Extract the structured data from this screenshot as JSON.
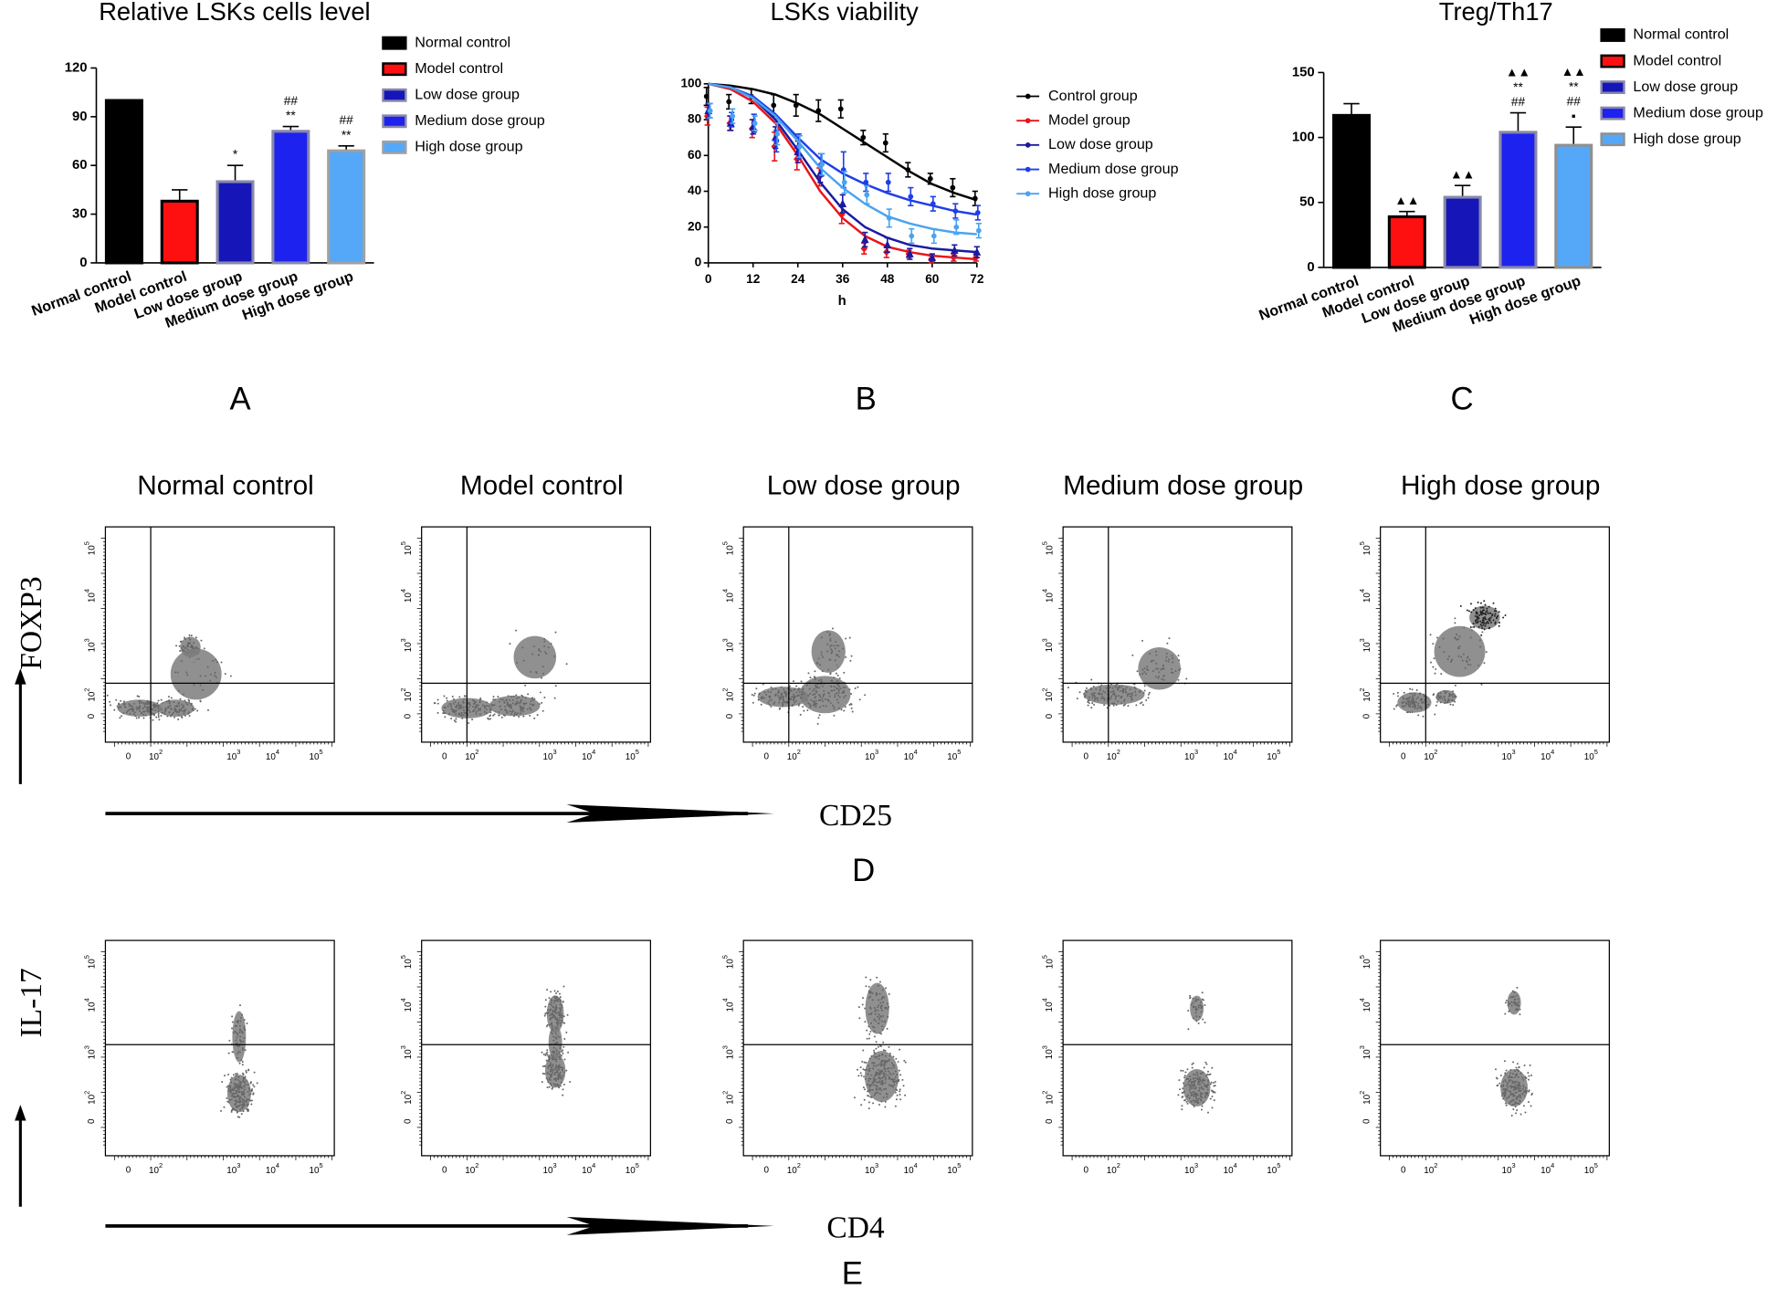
{
  "chart_data": [
    {
      "type": "bar",
      "panel_label": "A",
      "title": "Relative LSKs cells level",
      "categories": [
        "Normal control",
        "Model control",
        "Low dose group",
        "Medium dose group",
        "High dose group"
      ],
      "values": [
        100,
        38,
        50,
        81,
        69
      ],
      "errors": [
        0,
        7,
        10,
        3,
        3
      ],
      "colors": [
        "#000000",
        "#ff1010",
        "#1616b8",
        "#1e22ee",
        "#55a8f8"
      ],
      "edge_colors": [
        "#000000",
        "#000000",
        "#8888aa",
        "#8888aa",
        "#a0a0a0"
      ],
      "annotations": [
        null,
        null,
        [
          "*"
        ],
        [
          "**",
          "##"
        ],
        [
          "**",
          "##"
        ]
      ],
      "ylim": [
        0,
        120
      ],
      "yticks": [
        0,
        30,
        60,
        90,
        120
      ],
      "legend": "right"
    },
    {
      "type": "line",
      "panel_label": "B",
      "title": "LSKs viability",
      "x_label": "h",
      "x": [
        0,
        6,
        12,
        18,
        24,
        30,
        36,
        42,
        48,
        54,
        60,
        66,
        72
      ],
      "xlim": [
        0,
        72
      ],
      "xticks": [
        0,
        12,
        24,
        36,
        48,
        60,
        72
      ],
      "ylim": [
        0,
        100
      ],
      "yticks": [
        0,
        20,
        40,
        60,
        80,
        100
      ],
      "legend": "right",
      "series": [
        {
          "name": "Control group",
          "color": "#000000",
          "marker": "circle",
          "values": [
            93,
            90,
            93,
            88,
            88,
            85,
            86,
            70,
            67,
            52,
            47,
            42,
            36
          ],
          "errors": [
            5,
            4,
            4,
            6,
            6,
            6,
            5,
            4,
            5,
            4,
            3,
            5,
            4
          ],
          "fit": [
            100,
            99,
            97,
            94,
            89,
            83,
            75,
            67,
            59,
            51,
            44,
            39,
            35
          ]
        },
        {
          "name": "Model group",
          "color": "#e8141c",
          "marker": "diamond",
          "values": [
            82,
            78,
            75,
            65,
            58,
            48,
            27,
            8,
            6,
            5,
            2,
            3,
            3
          ],
          "errors": [
            5,
            4,
            5,
            8,
            6,
            5,
            5,
            3,
            3,
            2,
            2,
            2,
            2
          ],
          "fit": [
            100,
            97,
            90,
            78,
            60,
            40,
            25,
            15,
            9,
            6,
            4,
            3,
            2
          ]
        },
        {
          "name": "Low dose group",
          "color": "#1a1aa0",
          "marker": "triangle",
          "values": [
            85,
            78,
            76,
            70,
            62,
            50,
            33,
            13,
            10,
            5,
            3,
            7,
            6
          ],
          "errors": [
            4,
            4,
            4,
            6,
            6,
            5,
            5,
            4,
            4,
            3,
            2,
            3,
            3
          ],
          "fit": [
            100,
            98,
            92,
            80,
            63,
            45,
            30,
            20,
            14,
            10,
            8,
            7,
            6
          ]
        },
        {
          "name": "Medium dose group",
          "color": "#1f3ee6",
          "marker": "circle",
          "values": [
            85,
            80,
            78,
            68,
            65,
            55,
            52,
            45,
            45,
            37,
            33,
            29,
            28
          ],
          "errors": [
            4,
            4,
            5,
            6,
            7,
            6,
            10,
            5,
            5,
            5,
            4,
            4,
            4
          ],
          "fit": [
            100,
            98,
            93,
            83,
            70,
            58,
            50,
            44,
            39,
            35,
            32,
            29,
            27
          ]
        },
        {
          "name": "High dose group",
          "color": "#4aa3f0",
          "marker": "circle",
          "values": [
            85,
            82,
            78,
            72,
            65,
            55,
            45,
            38,
            25,
            15,
            15,
            20,
            18
          ],
          "errors": [
            4,
            4,
            4,
            6,
            6,
            6,
            6,
            5,
            5,
            4,
            4,
            4,
            4
          ],
          "fit": [
            100,
            98,
            92,
            82,
            68,
            53,
            42,
            33,
            26,
            22,
            19,
            17,
            16
          ]
        }
      ]
    },
    {
      "type": "bar",
      "panel_label": "C",
      "title": "Treg/Th17",
      "categories": [
        "Normal control",
        "Model control",
        "Low dose group",
        "Medium dose group",
        "High dose group"
      ],
      "values": [
        117,
        39,
        54,
        104,
        94
      ],
      "errors": [
        9,
        4,
        9,
        15,
        14
      ],
      "colors": [
        "#000000",
        "#ff1010",
        "#1616b8",
        "#1e22ee",
        "#55a8f8"
      ],
      "edge_colors": [
        "#000000",
        "#000000",
        "#8888aa",
        "#8888aa",
        "#909090"
      ],
      "annotations": [
        null,
        [
          "▲▲"
        ],
        [
          "▲▲"
        ],
        [
          "##",
          "**",
          "▲▲"
        ],
        [
          "▪",
          "##",
          "**",
          "▲▲"
        ]
      ],
      "ylim": [
        0,
        150
      ],
      "yticks": [
        0,
        50,
        100,
        150
      ],
      "legend": "right"
    }
  ],
  "flow": {
    "groups": [
      "Normal control",
      "Model control",
      "Low dose group",
      "Medium dose group",
      "High dose group"
    ],
    "zero": "0",
    "tick_base": "10",
    "tick_exponents": [
      "2",
      "3",
      "4",
      "5"
    ],
    "rows": [
      {
        "letter": "D",
        "y_label": "FOXP3",
        "x_label": "CD25"
      },
      {
        "letter": "E",
        "y_label": "IL-17",
        "x_label": "CD4"
      }
    ]
  }
}
